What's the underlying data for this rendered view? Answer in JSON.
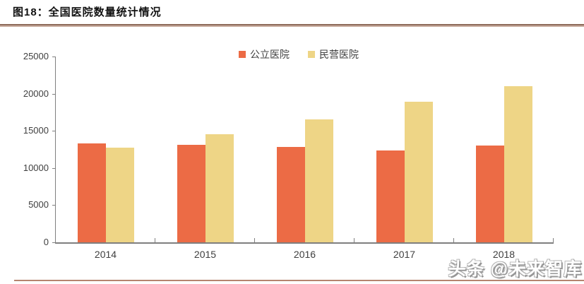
{
  "page": {
    "title": "图18：全国医院数量统计情况",
    "watermark": "头条 @未来智库"
  },
  "chart_data": {
    "type": "bar",
    "title": "全国医院数量统计情况",
    "categories": [
      "2014",
      "2015",
      "2016",
      "2017",
      "2018"
    ],
    "series": [
      {
        "name": "公立医院",
        "color": "#ec6b45",
        "values": [
          13350,
          13150,
          12850,
          12350,
          13000
        ]
      },
      {
        "name": "民营医院",
        "color": "#eed586",
        "values": [
          12700,
          14500,
          16500,
          18950,
          21050
        ]
      }
    ],
    "ylim": [
      0,
      25000
    ],
    "yticks": [
      0,
      5000,
      10000,
      15000,
      20000,
      25000
    ],
    "xlabel": "",
    "ylabel": "",
    "grid": false,
    "legend_position": "top-center",
    "axis_color": "#808080",
    "label_color": "#404040"
  }
}
